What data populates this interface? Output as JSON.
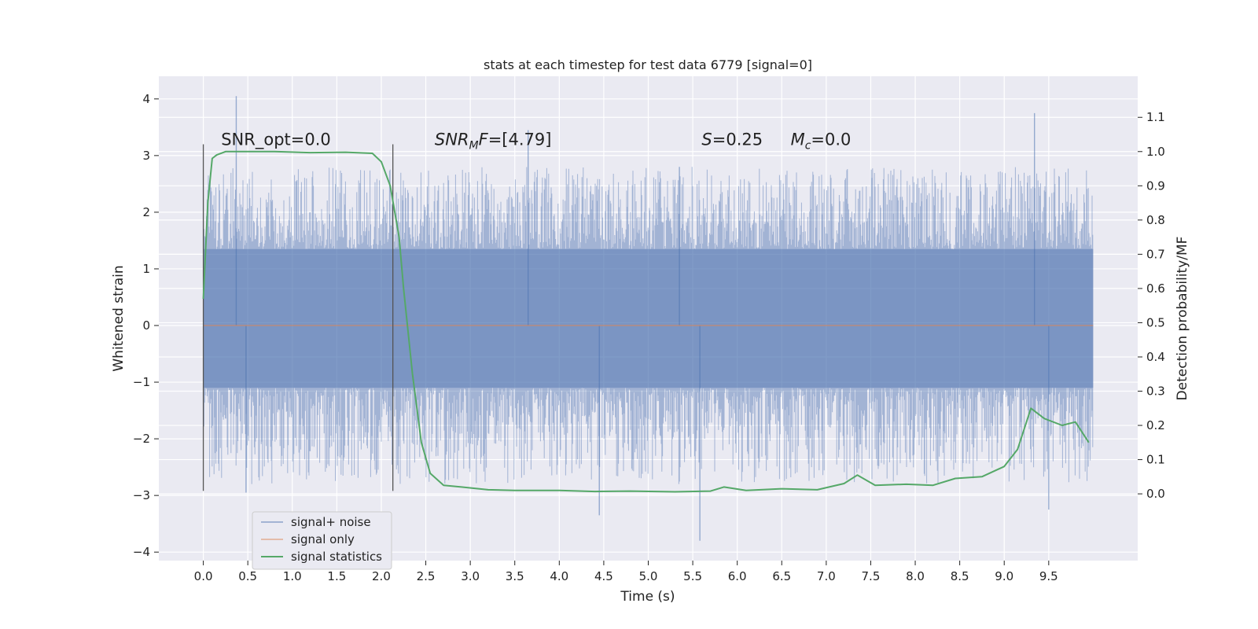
{
  "chart_data": {
    "type": "line",
    "title": "stats at each timestep for test data 6779 [signal=0]",
    "xlabel": "Time (s)",
    "ylabel": "Whitened strain",
    "y2label": "Detection probability/MF",
    "xlim": [
      -0.5,
      10.5
    ],
    "ylim": [
      -4.15,
      4.4
    ],
    "y2lim": [
      -0.195,
      1.22
    ],
    "x_ticks": [
      "0.0",
      "0.5",
      "1.0",
      "1.5",
      "2.0",
      "2.5",
      "3.0",
      "3.5",
      "4.0",
      "4.5",
      "5.0",
      "5.5",
      "6.0",
      "6.5",
      "7.0",
      "7.5",
      "8.0",
      "8.5",
      "9.0",
      "9.5"
    ],
    "y_ticks": [
      "4",
      "3",
      "2",
      "1",
      "0",
      "−1",
      "−2",
      "−3",
      "−4"
    ],
    "y2_ticks": [
      "1.1",
      "1.0",
      "0.9",
      "0.8",
      "0.7",
      "0.6",
      "0.5",
      "0.4",
      "0.3",
      "0.2",
      "0.1",
      "0.0"
    ],
    "grid": true,
    "legend_position": "bottom-left",
    "series": [
      {
        "name": "signal+ noise",
        "axis": "left",
        "color": "#4c72b0",
        "x_range": [
          0.0,
          10.0
        ],
        "core_band": [
          -1.1,
          1.35
        ],
        "typical_peaks": [
          -2.8,
          2.8
        ],
        "extremes": {
          "max": 4.05,
          "min": -3.8
        }
      },
      {
        "name": "signal only",
        "axis": "left",
        "color": "#dd8452",
        "x": [
          0.0,
          10.0
        ],
        "y": [
          0.0,
          0.0
        ]
      },
      {
        "name": "signal statistics",
        "axis": "right",
        "color": "#55a868",
        "x": [
          0.0,
          0.05,
          0.1,
          0.15,
          0.25,
          0.4,
          0.8,
          1.2,
          1.6,
          1.9,
          2.0,
          2.1,
          2.2,
          2.25,
          2.35,
          2.45,
          2.55,
          2.7,
          2.9,
          3.2,
          3.5,
          4.0,
          4.4,
          4.8,
          5.3,
          5.7,
          5.85,
          6.1,
          6.5,
          6.9,
          7.2,
          7.35,
          7.55,
          7.9,
          8.2,
          8.45,
          8.75,
          9.0,
          9.15,
          9.3,
          9.45,
          9.65,
          9.8,
          9.95
        ],
        "y": [
          0.57,
          0.85,
          0.98,
          0.99,
          1.0,
          1.0,
          1.0,
          0.997,
          0.998,
          0.995,
          0.97,
          0.9,
          0.75,
          0.6,
          0.35,
          0.15,
          0.06,
          0.025,
          0.02,
          0.012,
          0.01,
          0.01,
          0.007,
          0.008,
          0.006,
          0.008,
          0.02,
          0.01,
          0.015,
          0.012,
          0.03,
          0.055,
          0.025,
          0.028,
          0.025,
          0.045,
          0.05,
          0.08,
          0.13,
          0.25,
          0.22,
          0.2,
          0.21,
          0.15
        ]
      }
    ],
    "vlines": [
      {
        "x": 0.0,
        "ymin": -2.92,
        "ymax": 3.2
      },
      {
        "x": 2.13,
        "ymin": -2.92,
        "ymax": 3.2
      }
    ],
    "annotations": [
      {
        "x": 0.2,
        "y": 3.2,
        "base": "SNR_opt=0.0"
      },
      {
        "x": 2.6,
        "y": 3.2,
        "italic": "SNR",
        "sub": "M",
        "italic2": "F",
        "rest": "=[4.79]"
      },
      {
        "x": 5.6,
        "y": 3.2,
        "italic": "S",
        "rest": "=0.25"
      },
      {
        "x": 6.6,
        "y": 3.2,
        "italic": "M",
        "sub": "c",
        "rest": "=0.0"
      }
    ]
  }
}
